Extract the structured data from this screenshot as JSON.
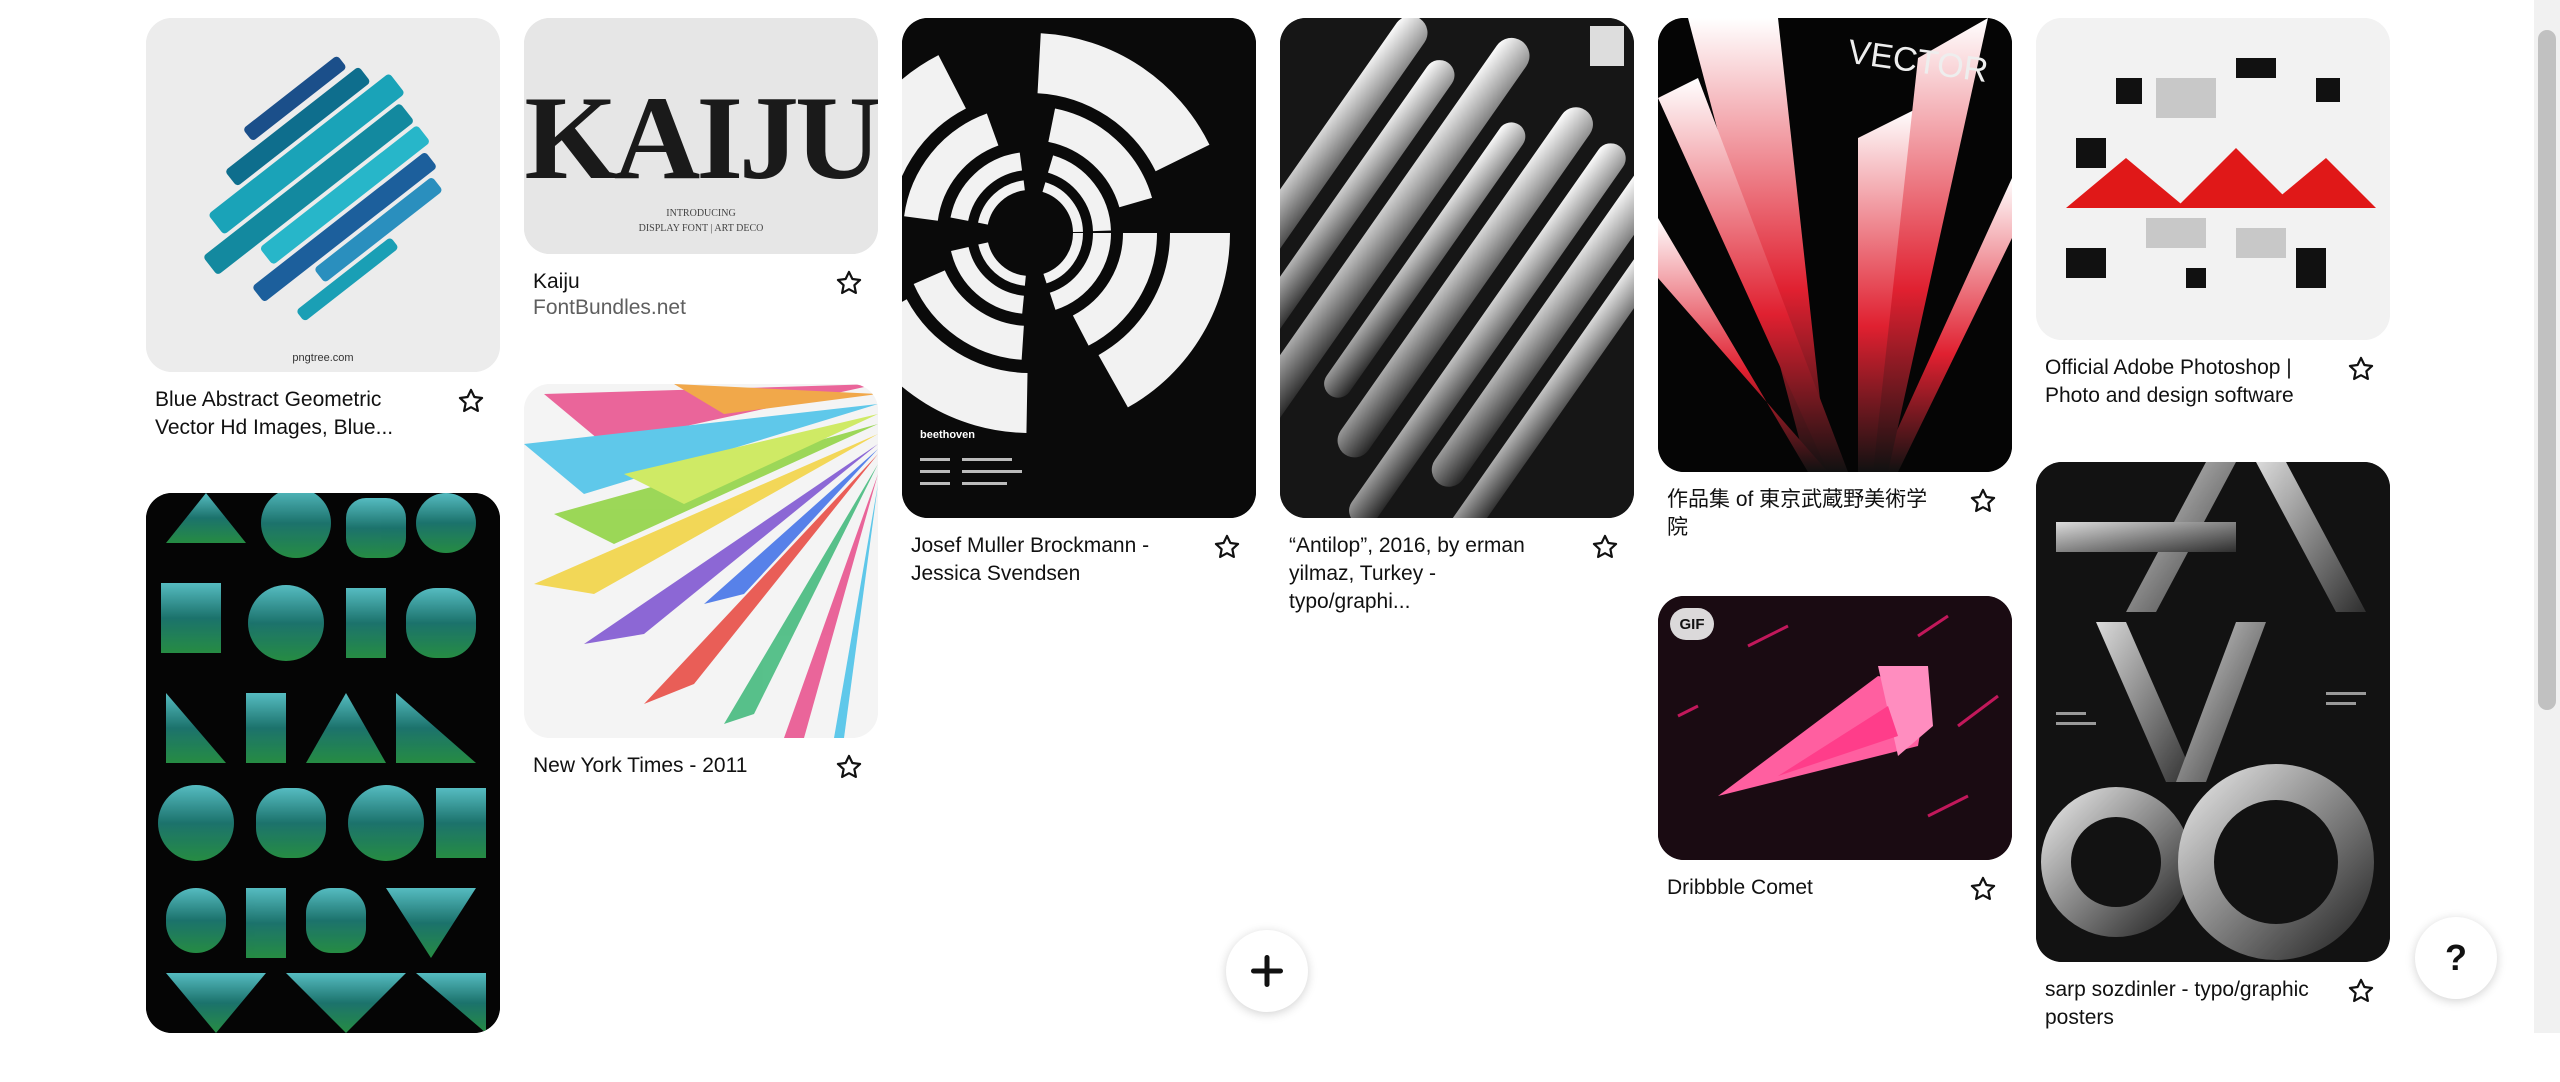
{
  "pins": [
    {
      "title": "Blue Abstract Geometric Vector Hd Images, Blue...",
      "subtitle": "",
      "image": "Blue abstract geometric slanted shapes",
      "image_text": "pngtree.com"
    },
    {
      "title": "",
      "subtitle": "",
      "image": "Alphabet typography poster in green and teal gradient shapes"
    },
    {
      "title": "Kaiju",
      "subtitle": "FontBundles.net",
      "image": "KAIJU display font preview",
      "image_text": "KAIJU",
      "image_text2": "INTRODUCING",
      "image_text3": "DISPLAY FONT | ART DECO"
    },
    {
      "title": "New York Times - 2011",
      "subtitle": "",
      "image": "Colorful radiating triangular shards"
    },
    {
      "title": "Josef Muller Brockmann - Jessica Svendsen",
      "subtitle": "",
      "image": "Black and white concentric arcs poster",
      "image_text": "beethoven"
    },
    {
      "title": "“Antilop”, 2016, by erman yilmaz, Turkey - typo/graphi...",
      "subtitle": "",
      "image": "Black and white diagonal pill shapes typographic poster"
    },
    {
      "title": "作品集 of 東京武蔵野美術学院",
      "subtitle": "",
      "image": "VECTOR black and red angular poster",
      "image_text": "VECTOR"
    },
    {
      "title": "Dribbble Comet",
      "subtitle": "",
      "image": "Pink comet on dark background",
      "badge": "GIF"
    },
    {
      "title": "Official Adobe Photoshop | Photo and design software",
      "subtitle": "",
      "image": "Red and black geometric collage"
    },
    {
      "title": "sarp sozdinler - typo/graphic posters",
      "subtitle": "",
      "image": "SATANTANGO typographic poster"
    }
  ],
  "buttons": {
    "add": "+",
    "help": "?"
  },
  "icons": {
    "save": "star-outline-icon",
    "add": "plus-icon",
    "help": "question-icon"
  }
}
